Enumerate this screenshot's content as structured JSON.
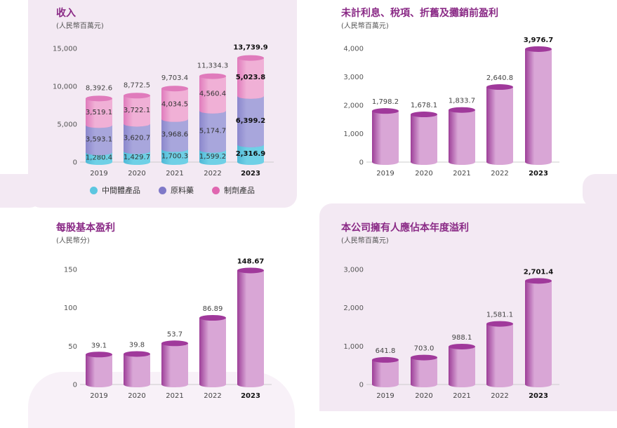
{
  "colors": {
    "accent": "#8a2a86",
    "panel_bg": "#f3e9f3",
    "cylinder_dark": "#9d3e98",
    "cylinder_light": "#d9a6d6",
    "cylinder_top": "#a0399b",
    "seg_intermediate": "#72cfe6",
    "seg_api": "#9c9fd6",
    "seg_formulation": "#e887c4"
  },
  "chart_data": [
    {
      "type": "bar",
      "title": "收入",
      "unit": "(人民幣百萬元)",
      "categories": [
        "2019",
        "2020",
        "2021",
        "2022",
        "2023"
      ],
      "highlight_category": "2023",
      "ylim": [
        0,
        15000
      ],
      "yticks": [
        "0",
        "5,000",
        "10,000",
        "15,000"
      ],
      "ytick_values": [
        0,
        5000,
        10000,
        15000
      ],
      "stacked": true,
      "series": [
        {
          "name": "中間體產品",
          "icon": "cyan-dot-icon",
          "values": [
            1280.4,
            1429.7,
            1700.3,
            1599.2,
            2316.9
          ],
          "labels": [
            "1,280.4",
            "1,429.7",
            "1,700.3",
            "1,599.2",
            "2,316.9"
          ]
        },
        {
          "name": "原料藥",
          "icon": "purple-dot-icon",
          "values": [
            3593.1,
            3620.7,
            3968.6,
            5174.7,
            6399.2
          ],
          "labels": [
            "3,593.1",
            "3,620.7",
            "3,968.6",
            "5,174.7",
            "6,399.2"
          ]
        },
        {
          "name": "制劑產品",
          "icon": "pink-dot-icon",
          "values": [
            3519.1,
            3722.1,
            4034.5,
            4560.4,
            5023.8
          ],
          "labels": [
            "3,519.1",
            "3,722.1",
            "4,034.5",
            "4,560.4",
            "5,023.8"
          ]
        }
      ],
      "totals": [
        8392.6,
        8772.5,
        9703.4,
        11334.3,
        13739.9
      ],
      "total_labels": [
        "8,392.6",
        "8,772.5",
        "9,703.4",
        "11,334.3",
        "13,739.9"
      ]
    },
    {
      "type": "bar",
      "title": "未計利息、稅項、折舊及攤銷前盈利",
      "unit": "(人民幣百萬元)",
      "categories": [
        "2019",
        "2020",
        "2021",
        "2022",
        "2023"
      ],
      "highlight_category": "2023",
      "ylim": [
        0,
        4000
      ],
      "yticks": [
        "0",
        "1,000",
        "2,000",
        "3,000",
        "4,000"
      ],
      "ytick_values": [
        0,
        1000,
        2000,
        3000,
        4000
      ],
      "values": [
        1798.2,
        1678.1,
        1833.7,
        2640.8,
        3976.7
      ],
      "labels": [
        "1,798.2",
        "1,678.1",
        "1,833.7",
        "2,640.8",
        "3,976.7"
      ]
    },
    {
      "type": "bar",
      "title": "每股基本盈利",
      "unit": "(人民幣分)",
      "categories": [
        "2019",
        "2020",
        "2021",
        "2022",
        "2023"
      ],
      "highlight_category": "2023",
      "ylim": [
        0,
        150
      ],
      "yticks": [
        "0",
        "50",
        "100",
        "150"
      ],
      "ytick_values": [
        0,
        50,
        100,
        150
      ],
      "values": [
        39.1,
        39.8,
        53.7,
        86.89,
        148.67
      ],
      "labels": [
        "39.1",
        "39.8",
        "53.7",
        "86.89",
        "148.67"
      ]
    },
    {
      "type": "bar",
      "title": "本公司擁有人應佔本年度溢利",
      "unit": "(人民幣百萬元)",
      "categories": [
        "2019",
        "2020",
        "2021",
        "2022",
        "2023"
      ],
      "highlight_category": "2023",
      "ylim": [
        0,
        3000
      ],
      "yticks": [
        "0",
        "1,000",
        "2,000",
        "3,000"
      ],
      "ytick_values": [
        0,
        1000,
        2000,
        3000
      ],
      "values": [
        641.8,
        703.0,
        988.1,
        1581.1,
        2701.4
      ],
      "labels": [
        "641.8",
        "703.0",
        "988.1",
        "1,581.1",
        "2,701.4"
      ]
    }
  ]
}
